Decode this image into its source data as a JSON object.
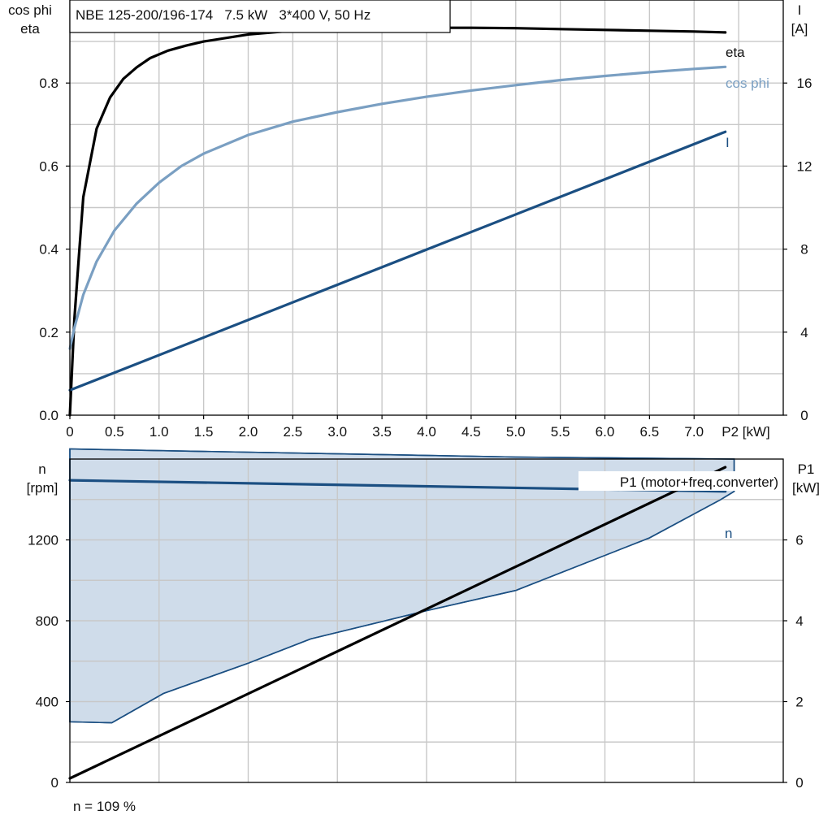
{
  "chart_data": [
    {
      "type": "line",
      "title": "NBE 125-200/196-174   7.5 kW   3*400 V, 50 Hz",
      "xlabel": "P2 [kW]",
      "ylabel_left_line1": "cos phi",
      "ylabel_left_line2": "eta",
      "ylabel_right_line1": "I",
      "ylabel_right_line2": "[A]",
      "xlim": [
        0,
        8
      ],
      "ylim_left": [
        0,
        1.0
      ],
      "ylim_right": [
        0,
        20
      ],
      "x_ticks": [
        "0",
        "0.5",
        "1.0",
        "1.5",
        "2.0",
        "2.5",
        "3.0",
        "3.5",
        "4.0",
        "4.5",
        "5.0",
        "5.5",
        "6.0",
        "6.5",
        "7.0"
      ],
      "y_ticks_left": [
        "0.0",
        "0.2",
        "0.4",
        "0.6",
        "0.8"
      ],
      "y_ticks_right": [
        "0",
        "4",
        "8",
        "12",
        "16"
      ],
      "grid": true,
      "series": [
        {
          "name": "eta",
          "axis": "left",
          "color": "#000000",
          "x": [
            0.0,
            0.05,
            0.1,
            0.15,
            0.3,
            0.45,
            0.6,
            0.75,
            0.9,
            1.1,
            1.3,
            1.5,
            2.0,
            2.5,
            3.0,
            3.5,
            4.0,
            4.5,
            5.0,
            5.5,
            6.0,
            6.5,
            7.0,
            7.35
          ],
          "y": [
            0.0,
            0.23,
            0.38,
            0.525,
            0.69,
            0.765,
            0.81,
            0.838,
            0.86,
            0.878,
            0.89,
            0.9,
            0.917,
            0.926,
            0.93,
            0.932,
            0.933,
            0.933,
            0.932,
            0.93,
            0.928,
            0.926,
            0.924,
            0.922
          ]
        },
        {
          "name": "cos phi",
          "axis": "left",
          "color": "#7a9fc2",
          "x": [
            0.0,
            0.05,
            0.15,
            0.3,
            0.5,
            0.75,
            1.0,
            1.25,
            1.5,
            2.0,
            2.5,
            3.0,
            3.5,
            4.0,
            4.5,
            5.0,
            5.5,
            6.0,
            6.5,
            7.0,
            7.35
          ],
          "y": [
            0.16,
            0.21,
            0.29,
            0.37,
            0.445,
            0.51,
            0.56,
            0.6,
            0.63,
            0.675,
            0.707,
            0.73,
            0.75,
            0.767,
            0.782,
            0.795,
            0.807,
            0.817,
            0.826,
            0.834,
            0.839
          ]
        },
        {
          "name": "I",
          "axis": "right",
          "color": "#1b4f82",
          "x": [
            0.0,
            7.35
          ],
          "y": [
            1.2,
            13.65
          ]
        }
      ]
    },
    {
      "type": "area",
      "xlabel": "",
      "ylabel_left_line1": "n",
      "ylabel_left_line2": "[rpm]",
      "ylabel_right_line1": "P1",
      "ylabel_right_line2": "[kW]",
      "xlim": [
        0,
        8
      ],
      "ylim_left": [
        0,
        1600
      ],
      "ylim_right": [
        0,
        8
      ],
      "y_ticks_left": [
        "0",
        "400",
        "800",
        "1200"
      ],
      "y_ticks_right": [
        "0",
        "2",
        "4",
        "6"
      ],
      "grid": true,
      "footer": "n = 109 %",
      "envelope": {
        "color": "#1b4f82",
        "fill": "#cfdcea",
        "upper": {
          "x": [
            0.0,
            5.0,
            7.45
          ],
          "y": [
            1650,
            1610,
            1600
          ]
        },
        "right_edge": {
          "x": [
            7.45,
            7.45
          ],
          "y": [
            1600,
            1440
          ]
        },
        "lower": {
          "x": [
            7.45,
            7.3,
            6.5,
            5.0,
            4.0,
            2.7,
            2.0,
            1.05,
            0.47,
            0.0
          ],
          "y": [
            1440,
            1400,
            1210,
            950,
            850,
            710,
            590,
            440,
            295,
            300
          ]
        }
      },
      "series": [
        {
          "name": "n",
          "axis": "left",
          "color": "#1b4f82",
          "x": [
            0.0,
            7.35
          ],
          "y": [
            1495,
            1440
          ]
        },
        {
          "name": "P1 (motor+freq.converter)",
          "axis": "right",
          "color": "#000000",
          "x": [
            0.0,
            7.35
          ],
          "y": [
            0.1,
            7.8
          ]
        }
      ]
    }
  ]
}
